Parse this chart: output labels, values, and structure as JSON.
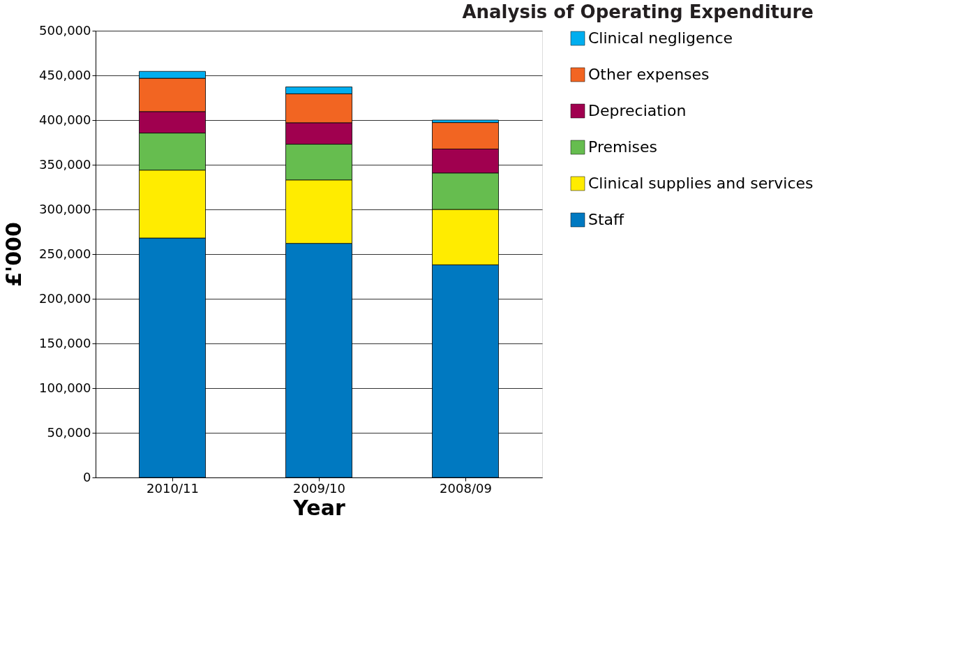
{
  "chart_data": {
    "type": "bar",
    "title": "Analysis of Operating Expenditure",
    "xlabel": "Year",
    "ylabel": "£'000",
    "categories": [
      "2010/11",
      "2009/10",
      "2008/09"
    ],
    "stacked": true,
    "ylim": [
      0,
      500000
    ],
    "yticks": [
      0,
      {
        "value": 50000,
        "label": "50,000"
      },
      {
        "value": 100000,
        "label": "100,000"
      },
      {
        "value": 150000,
        "label": "150,000"
      },
      {
        "value": 200000,
        "label": "200,000"
      },
      {
        "value": 250000,
        "label": "250,000"
      },
      {
        "value": 300000,
        "label": "300,000"
      },
      {
        "value": 350000,
        "label": "350,000"
      },
      {
        "value": 400000,
        "label": "400,000"
      },
      {
        "value": 450000,
        "label": "450,000"
      },
      {
        "value": 500000,
        "label": "500,000"
      }
    ],
    "grid": "y",
    "legend": "right",
    "series": [
      {
        "name": "Staff",
        "color": "#0079c1",
        "values": [
          268000,
          262000,
          238000
        ]
      },
      {
        "name": "Clinical supplies and services",
        "color": "#ffec00",
        "values": [
          76000,
          71000,
          62000
        ]
      },
      {
        "name": "Premises",
        "color": "#66bd4f",
        "values": [
          41500,
          40000,
          40800
        ]
      },
      {
        "name": "Depreciation",
        "color": "#a0004f",
        "values": [
          24000,
          24000,
          26800
        ]
      },
      {
        "name": "Other expenses",
        "color": "#f26522",
        "values": [
          37300,
          32400,
          29600
        ]
      },
      {
        "name": "Clinical negligence",
        "color": "#00aeef",
        "values": [
          7700,
          7700,
          2800
        ]
      }
    ]
  }
}
